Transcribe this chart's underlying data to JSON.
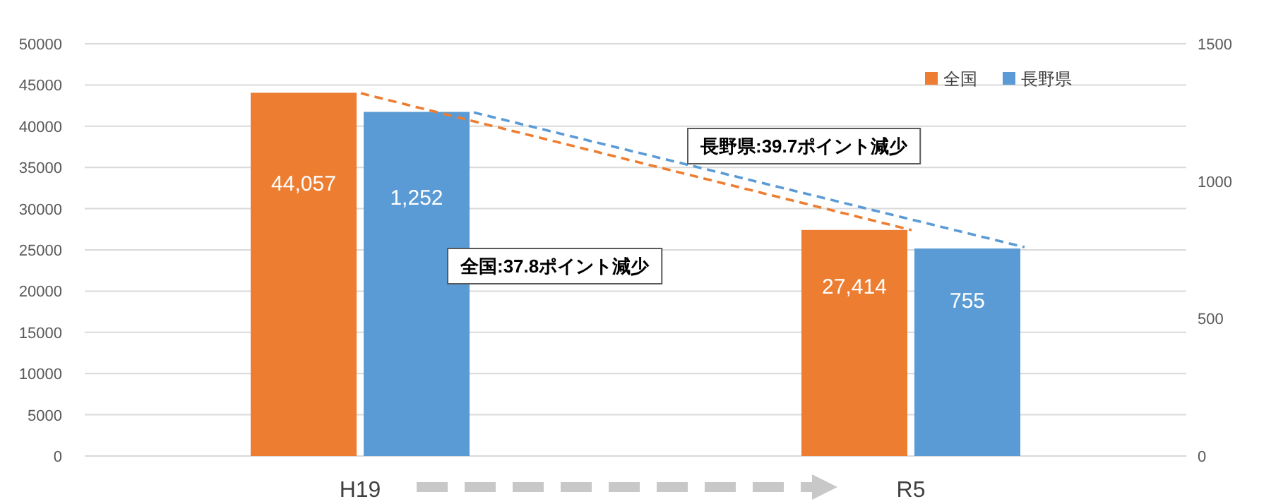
{
  "chart_data": {
    "type": "bar",
    "categories": [
      "H19",
      "R5"
    ],
    "series": [
      {
        "name": "全国",
        "color": "#ed7d31",
        "values": [
          44057,
          27414
        ],
        "value_labels": [
          "44,057",
          "27,414"
        ]
      },
      {
        "name": "長野県",
        "color": "#5b9bd5",
        "values": [
          1252,
          755
        ],
        "value_labels": [
          "1,252",
          "755"
        ],
        "axis": "y2"
      },
      {
        "type": "line",
        "color": "#ed7d31",
        "values": [
          44000,
          27400
        ],
        "line_style": "dashed"
      },
      {
        "type": "line",
        "color": "#5b9bd5",
        "values": [
          1250,
          760
        ],
        "line_style": "dashed",
        "axis": "y2"
      }
    ],
    "ylim": [
      0,
      50000
    ],
    "yticks": [
      0,
      5000,
      10000,
      15000,
      20000,
      25000,
      30000,
      35000,
      40000,
      45000,
      50000
    ],
    "y2lim": [
      0,
      1500
    ],
    "y2ticks": [
      0,
      500,
      1000,
      1500
    ],
    "grid": "y",
    "legend": "top right",
    "annotations": [
      "全国:37.8ポイント減少",
      "長野県:39.7ポイント減少"
    ]
  }
}
